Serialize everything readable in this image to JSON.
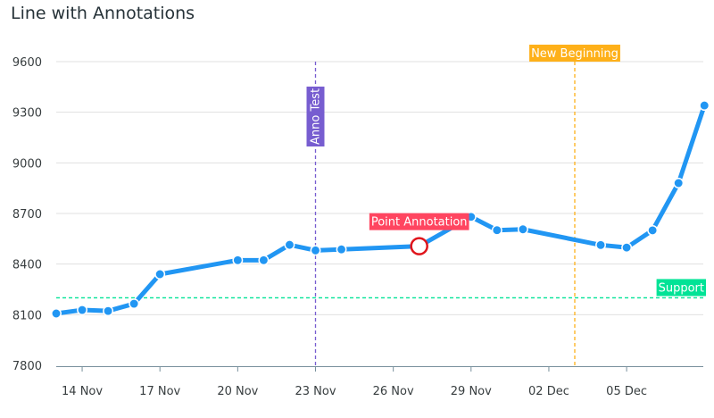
{
  "chart_data": {
    "type": "line",
    "title": "Line with Annotations",
    "xlabel": "",
    "ylabel": "",
    "x_ticks": [
      "14 Nov",
      "17 Nov",
      "20 Nov",
      "23 Nov",
      "26 Nov",
      "29 Nov",
      "02 Dec",
      "05 Dec"
    ],
    "y_ticks": [
      7800,
      8100,
      8400,
      8700,
      9000,
      9300,
      9600
    ],
    "ylim": [
      7800,
      9600
    ],
    "grid": true,
    "series": [
      {
        "color": "#2196f3",
        "points": [
          {
            "x": "13 Nov",
            "y": 8107
          },
          {
            "x": "14 Nov",
            "y": 8128
          },
          {
            "x": "15 Nov",
            "y": 8122
          },
          {
            "x": "16 Nov",
            "y": 8165
          },
          {
            "x": "17 Nov",
            "y": 8340
          },
          {
            "x": "20 Nov",
            "y": 8423
          },
          {
            "x": "21 Nov",
            "y": 8423
          },
          {
            "x": "22 Nov",
            "y": 8514
          },
          {
            "x": "23 Nov",
            "y": 8481
          },
          {
            "x": "24 Nov",
            "y": 8487
          },
          {
            "x": "27 Nov",
            "y": 8506
          },
          {
            "x": "29 Nov",
            "y": 8680
          },
          {
            "x": "30 Nov",
            "y": 8601
          },
          {
            "x": "01 Dec",
            "y": 8606
          },
          {
            "x": "04 Dec",
            "y": 8513
          },
          {
            "x": "05 Dec",
            "y": 8498
          },
          {
            "x": "06 Dec",
            "y": 8600
          },
          {
            "x": "07 Dec",
            "y": 8880
          },
          {
            "x": "08 Dec",
            "y": 9340
          }
        ]
      }
    ],
    "annotations": {
      "yaxis": [
        {
          "y": 8200,
          "label": "Support",
          "color": "#00e396"
        }
      ],
      "xaxis": [
        {
          "x": "23 Nov",
          "label": "Anno Test",
          "color": "#775dd0",
          "orientation": "vertical"
        },
        {
          "x": "03 Dec",
          "label": "New Beginning",
          "color": "#feb019",
          "orientation": "horizontal"
        }
      ],
      "points": [
        {
          "x": "27 Nov",
          "y": 8506,
          "label": "Point Annotation",
          "color": "#ff4560"
        }
      ]
    }
  }
}
